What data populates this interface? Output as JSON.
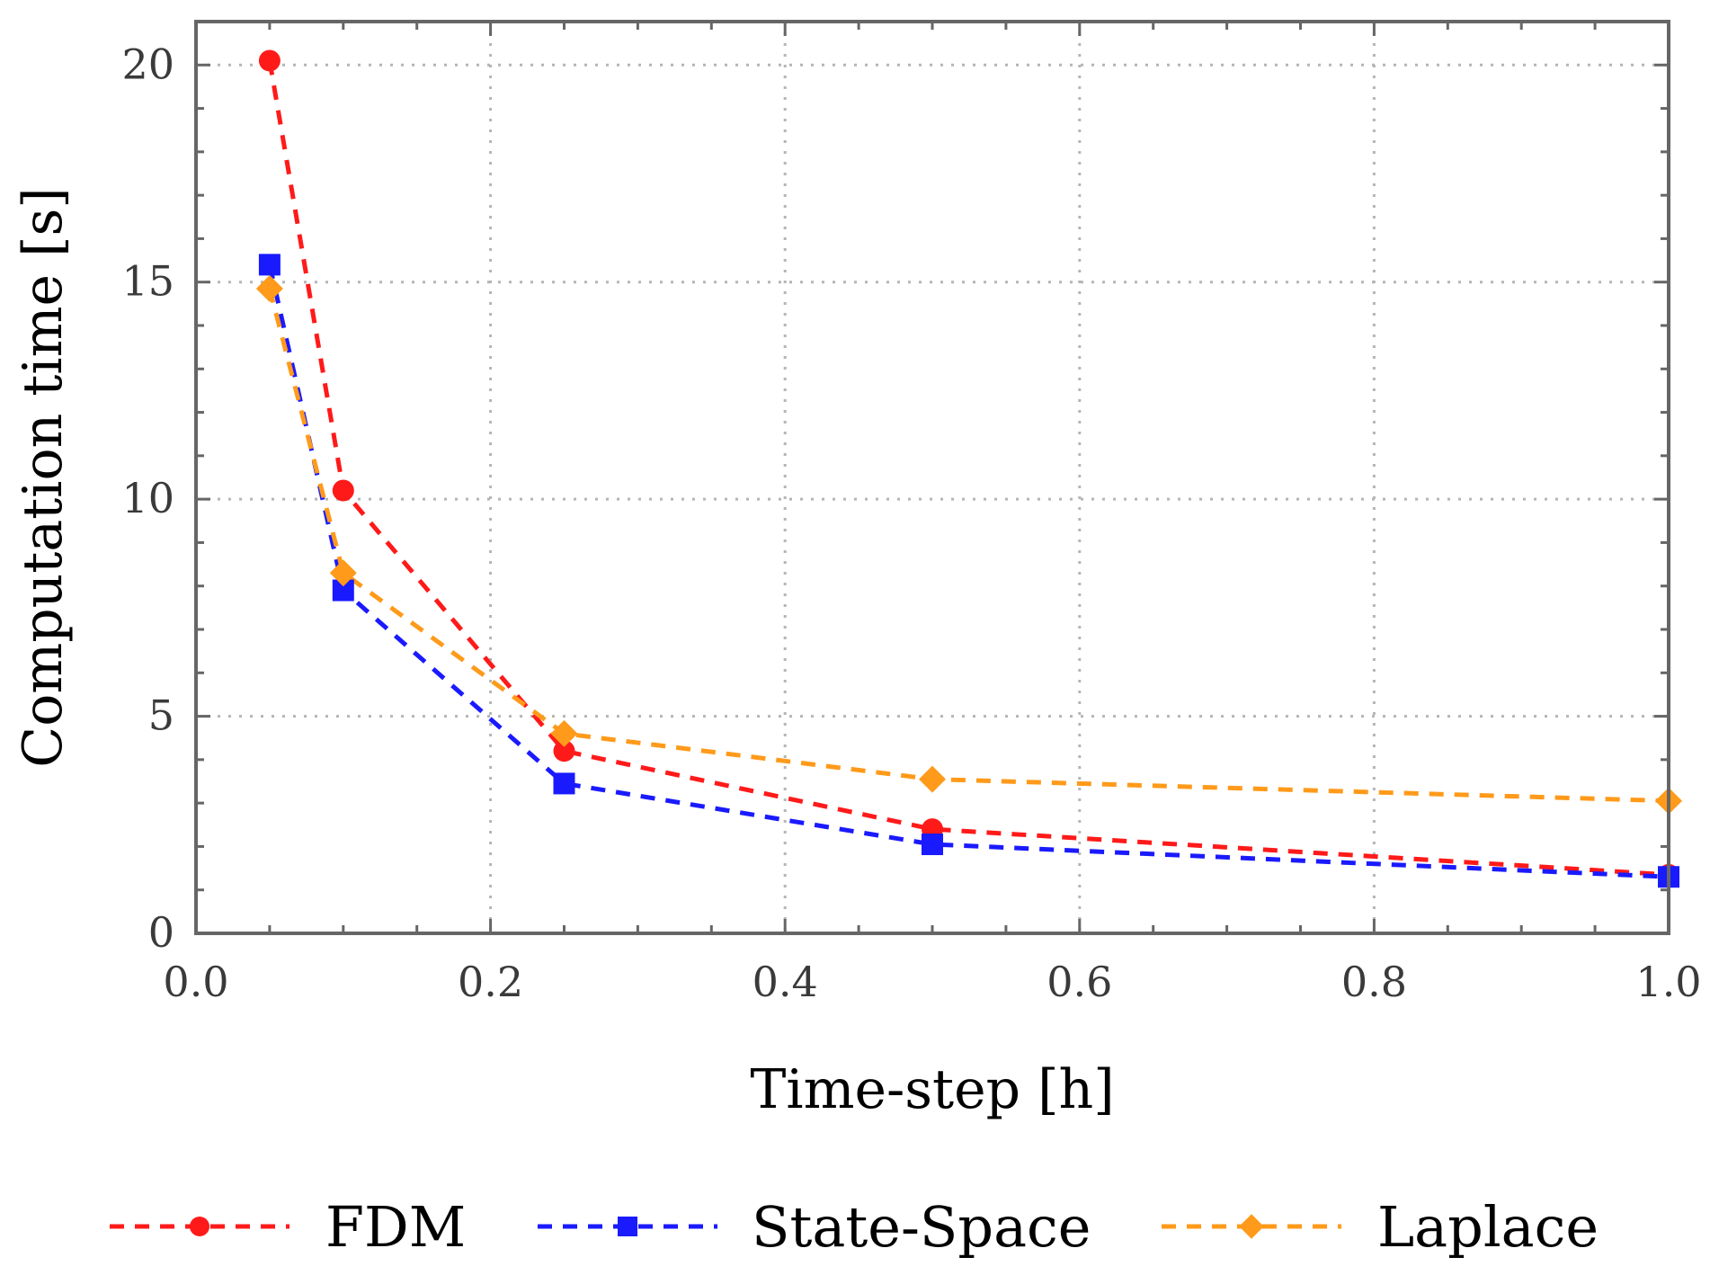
{
  "chart_data": {
    "type": "line",
    "title": "",
    "xlabel": "Time-step [h]",
    "ylabel": "Computation time [s]",
    "xlim": [
      0.0,
      1.0
    ],
    "ylim": [
      0,
      21
    ],
    "x_ticks": [
      0.0,
      0.2,
      0.4,
      0.6,
      0.8,
      1.0
    ],
    "x_tick_labels": [
      "0.0",
      "0.2",
      "0.4",
      "0.6",
      "0.8",
      "1.0"
    ],
    "y_ticks": [
      0,
      5,
      10,
      15,
      20
    ],
    "y_tick_labels": [
      "0",
      "5",
      "10",
      "15",
      "20"
    ],
    "grid": true,
    "legend_position": "bottom",
    "x": [
      0.05,
      0.1,
      0.25,
      0.5,
      1.0
    ],
    "series": [
      {
        "name": "FDM",
        "color": "#ff1a1a",
        "marker": "circle",
        "values": [
          20.1,
          10.2,
          4.2,
          2.4,
          1.35
        ]
      },
      {
        "name": "State-Space",
        "color": "#1a1aff",
        "marker": "square",
        "values": [
          15.4,
          7.9,
          3.45,
          2.05,
          1.3
        ]
      },
      {
        "name": "Laplace",
        "color": "#ff9a1a",
        "marker": "diamond",
        "values": [
          14.85,
          8.3,
          4.6,
          3.55,
          3.05
        ]
      }
    ]
  }
}
